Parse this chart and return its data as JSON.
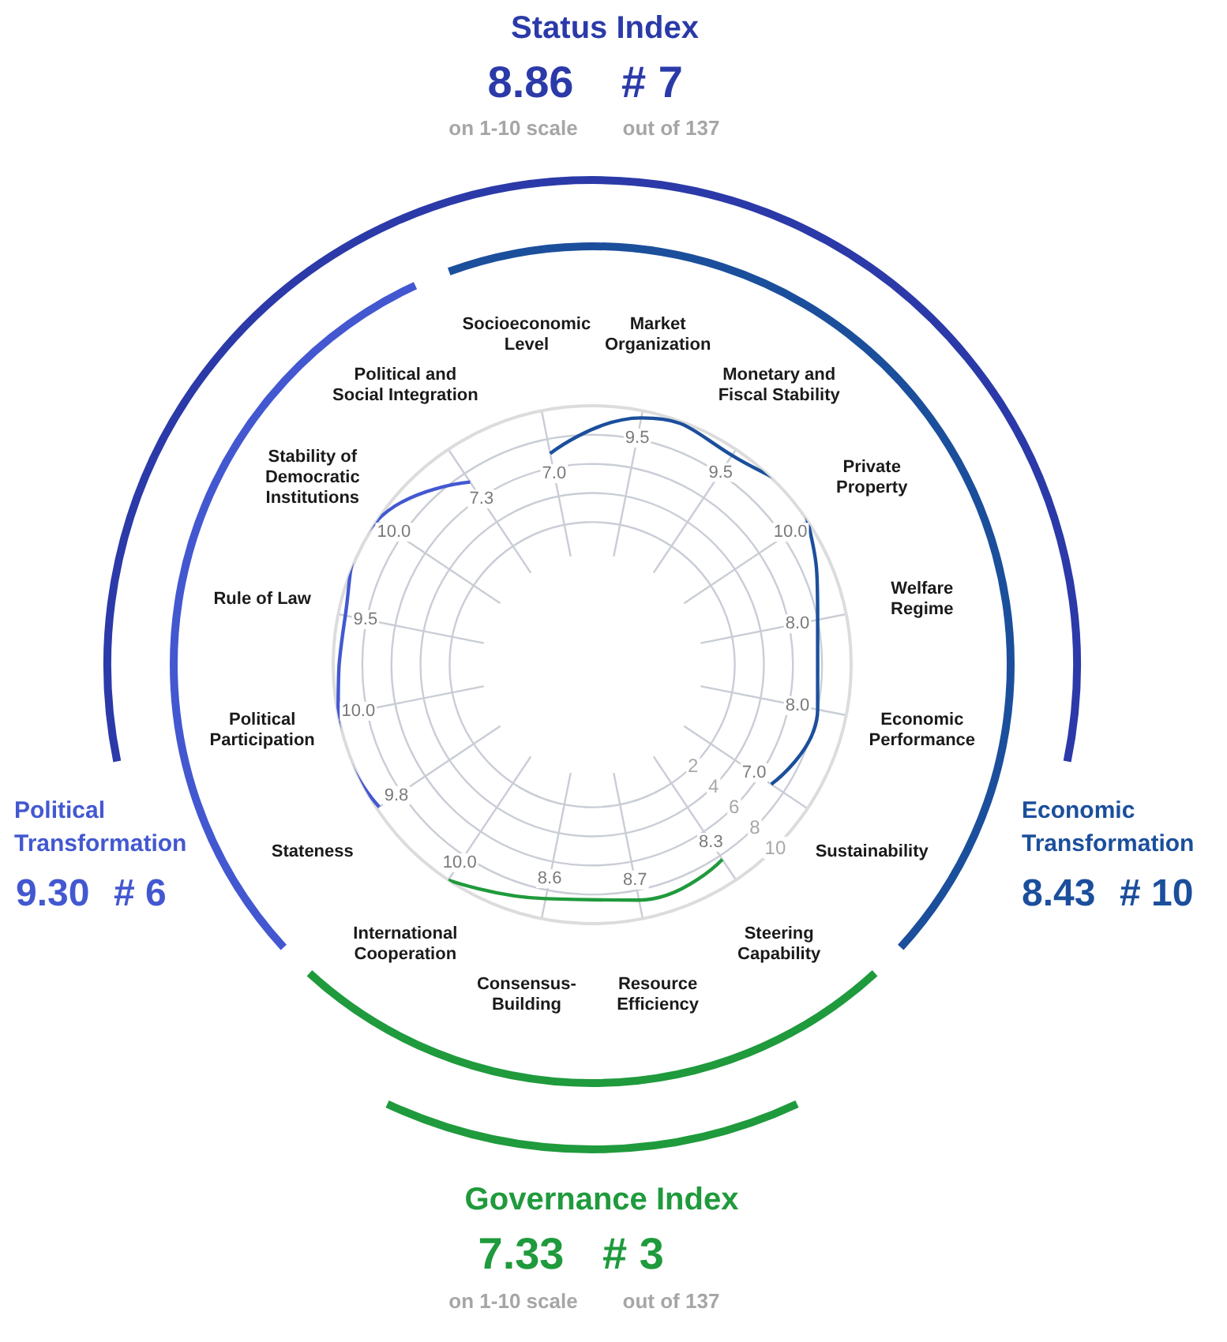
{
  "chart_data": {
    "type": "radar",
    "title": "Status Index",
    "categories": [
      "Market Organization",
      "Monetary and Fiscal Stability",
      "Private Property",
      "Welfare Regime",
      "Economic Performance",
      "Sustainability",
      "Steering Capability",
      "Resource Efficiency",
      "Consensus-Building",
      "International Cooperation",
      "Stateness",
      "Political Participation",
      "Rule of Law",
      "Stability of Democratic Institutions",
      "Political and Social Integration",
      "Socioeconomic Level"
    ],
    "series": [
      {
        "name": "Economic Transformation",
        "color": "#1b4f9c",
        "values": [
          9.5,
          9.5,
          10.0,
          8.0,
          8.0,
          7.0,
          null,
          null,
          null,
          null,
          null,
          null,
          null,
          null,
          null,
          7.0
        ],
        "value_labels": [
          "9.5",
          "9.5",
          "10.0",
          "8.0",
          "8.0",
          "7.0",
          null,
          null,
          null,
          null,
          null,
          null,
          null,
          null,
          null,
          "7.0"
        ]
      },
      {
        "name": "Governance Index",
        "color": "#1f9a3c",
        "values": [
          null,
          null,
          null,
          null,
          null,
          null,
          8.3,
          8.7,
          8.6,
          10.0,
          null,
          null,
          null,
          null,
          null,
          null
        ],
        "value_labels": [
          null,
          null,
          null,
          null,
          null,
          null,
          "8.3",
          "8.7",
          "8.6",
          "10.0",
          null,
          null,
          null,
          null,
          null,
          null
        ]
      },
      {
        "name": "Political Transformation",
        "color": "#4358d0",
        "values": [
          null,
          null,
          null,
          null,
          null,
          null,
          null,
          null,
          null,
          null,
          9.8,
          10.0,
          9.5,
          10.0,
          7.3,
          null
        ],
        "value_labels": [
          null,
          null,
          null,
          null,
          null,
          null,
          null,
          null,
          null,
          null,
          "9.8",
          "10.0",
          "9.5",
          "10.0",
          "7.3",
          null
        ]
      }
    ],
    "ylim": [
      -7.8,
      10
    ],
    "yticks": [
      2,
      4,
      6,
      8,
      10
    ],
    "grid": true,
    "marker": "none",
    "annotations": [
      "8.86",
      "# 7",
      "on 1-10 scale",
      "out of 137",
      "9.30",
      "# 6",
      "8.43",
      "# 10",
      "7.33",
      "# 3",
      "on 1-10 scale",
      "out of 137"
    ]
  }
}
